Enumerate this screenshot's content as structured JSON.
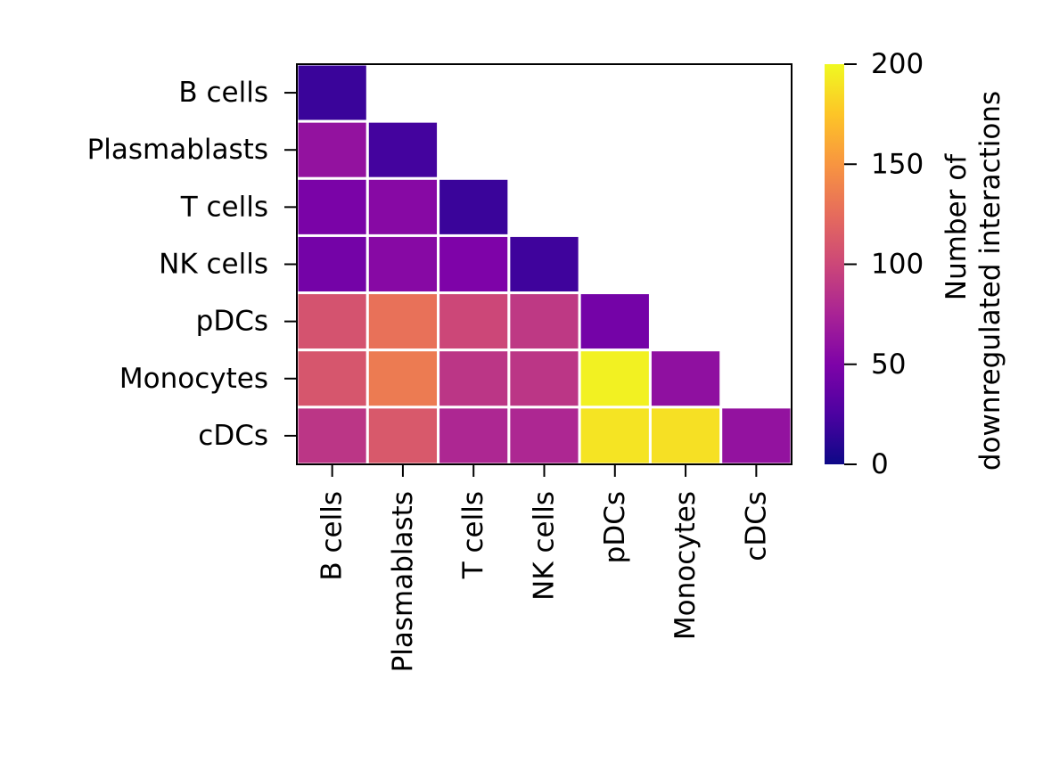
{
  "chart_data": {
    "type": "heatmap",
    "layout": "lower-triangle",
    "rows": [
      "B cells",
      "Plasmablasts",
      "T cells",
      "NK cells",
      "pDCs",
      "Monocytes",
      "cDCs"
    ],
    "columns": [
      "B cells",
      "Plasmablasts",
      "T cells",
      "NK cells",
      "pDCs",
      "Monocytes",
      "cDCs"
    ],
    "values": [
      [
        18,
        null,
        null,
        null,
        null,
        null,
        null
      ],
      [
        62,
        22,
        null,
        null,
        null,
        null,
        null
      ],
      [
        48,
        55,
        18,
        null,
        null,
        null,
        null
      ],
      [
        45,
        55,
        50,
        20,
        null,
        null,
        null
      ],
      [
        108,
        128,
        100,
        90,
        45,
        null,
        null
      ],
      [
        110,
        134,
        88,
        88,
        196,
        60,
        null
      ],
      [
        88,
        112,
        78,
        78,
        190,
        188,
        62
      ]
    ],
    "colorbar": {
      "label_lines": [
        "Number of",
        "downregulated interactions"
      ],
      "min": 0,
      "max": 200,
      "ticks": [
        0,
        50,
        100,
        150,
        200
      ],
      "colormap": "plasma"
    }
  }
}
